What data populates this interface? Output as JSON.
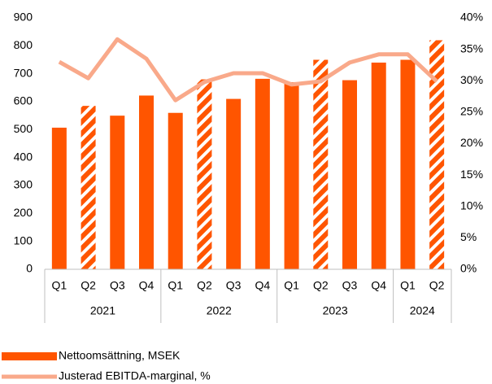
{
  "chart_data": {
    "type": "bar",
    "category_groups": [
      {
        "label": "2021",
        "categories": [
          "Q1",
          "Q2",
          "Q3",
          "Q4"
        ]
      },
      {
        "label": "2022",
        "categories": [
          "Q1",
          "Q2",
          "Q3",
          "Q4"
        ]
      },
      {
        "label": "2023",
        "categories": [
          "Q1",
          "Q2",
          "Q3",
          "Q4"
        ]
      },
      {
        "label": "2024",
        "categories": [
          "Q1",
          "Q2"
        ]
      }
    ],
    "series": [
      {
        "name": "Nettoomsättning, MSEK",
        "type": "bar",
        "color": "#ff5500",
        "hatched": [
          false,
          true,
          false,
          false,
          false,
          true,
          false,
          false,
          false,
          true,
          false,
          false,
          false,
          true
        ],
        "values": [
          507,
          585,
          550,
          622,
          560,
          680,
          610,
          682,
          670,
          750,
          677,
          740,
          750,
          820
        ]
      },
      {
        "name": "Justerad EBITDA-marginal, %",
        "type": "line",
        "axis": "y2",
        "color": "#f9a98a",
        "values": [
          33.0,
          30.4,
          36.6,
          33.5,
          26.9,
          29.8,
          31.2,
          31.2,
          29.4,
          29.9,
          32.9,
          34.2,
          34.2,
          29.9
        ]
      }
    ],
    "ylim": [
      0,
      900
    ],
    "yticks": [
      0,
      100,
      200,
      300,
      400,
      500,
      600,
      700,
      800,
      900
    ],
    "y2lim": [
      0,
      40
    ],
    "y2ticks": [
      {
        "value": 0,
        "label": "0%"
      },
      {
        "value": 5,
        "label": "5%"
      },
      {
        "value": 10,
        "label": "10%"
      },
      {
        "value": 15,
        "label": "15%"
      },
      {
        "value": 20,
        "label": "20%"
      },
      {
        "value": 25,
        "label": "25%"
      },
      {
        "value": 30,
        "label": "30%"
      },
      {
        "value": 35,
        "label": "35%"
      },
      {
        "value": 40,
        "label": "40%"
      }
    ],
    "grid": false
  }
}
